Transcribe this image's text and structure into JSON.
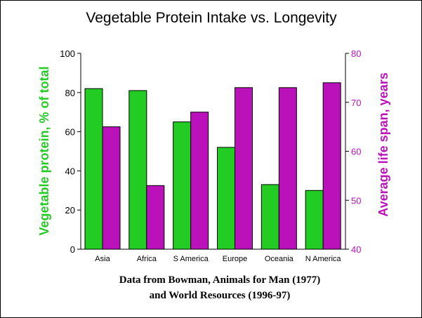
{
  "chart_data": {
    "type": "bar",
    "title": "Vegetable Protein Intake vs. Longevity",
    "categories": [
      "Asia",
      "Africa",
      "S America",
      "Europe",
      "Oceania",
      "N America"
    ],
    "series": [
      {
        "values": [
          82,
          81,
          65,
          52,
          33,
          30
        ],
        "color": "#22cc22",
        "axis": "left"
      },
      {
        "values": [
          65,
          53,
          68,
          73,
          73,
          74
        ],
        "color": "#bb11bb",
        "axis": "right"
      }
    ],
    "ylabel": "Vegetable protein, % of total",
    "y2label": "Average life span, years",
    "ylim": [
      0,
      100
    ],
    "y2lim": [
      40,
      80
    ],
    "yticks": [
      "0",
      "20",
      "40",
      "60",
      "80",
      "100"
    ],
    "y2ticks": [
      "40",
      "50",
      "60",
      "70",
      "80"
    ],
    "left_axis_color": "#22cc22",
    "right_axis_color": "#bb11bb",
    "grid": false,
    "legend": "none"
  },
  "caption": {
    "line1": "Data from Bowman, Animals for Man (1977)",
    "line2": "and World Resources (1996-97)"
  }
}
